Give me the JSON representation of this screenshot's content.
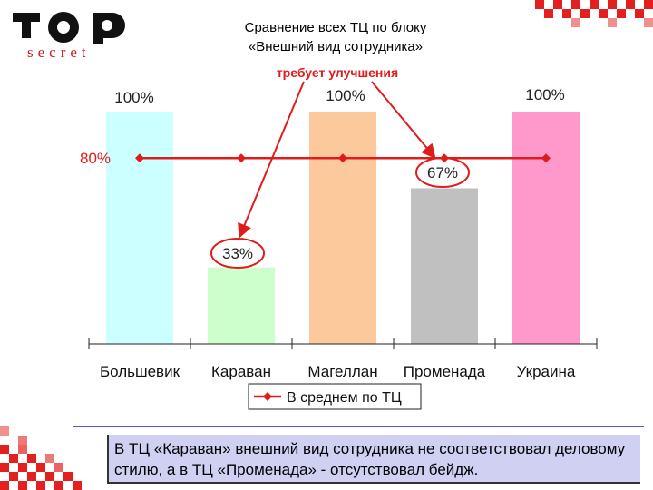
{
  "logo": {
    "word_top": "TOP",
    "word_bottom": "secret"
  },
  "title": {
    "line1": "Сравнение всех ТЦ по блоку",
    "line2": "«Внешний вид сотрудника»"
  },
  "chart_data": {
    "type": "bar",
    "categories": [
      "Большевик",
      "Караван",
      "Магеллан",
      "Променада",
      "Украина"
    ],
    "series": [
      {
        "name": "",
        "values": [
          100,
          33,
          100,
          67,
          100
        ],
        "colors": [
          "#ccffff",
          "#ccffcc",
          "#fcc99c",
          "#c0c0c0",
          "#ff99cc"
        ]
      },
      {
        "name": "В среднем по ТЦ",
        "type": "line",
        "values": [
          80,
          80,
          80,
          80,
          80
        ],
        "color": "#e01b1b"
      }
    ],
    "data_labels": [
      "100%",
      "33%",
      "100%",
      "67%",
      "100%"
    ],
    "average_label": "80%",
    "annotation": "требует улучшения",
    "ylim": [
      0,
      100
    ],
    "grid": false,
    "legend_position": "bottom"
  },
  "caption": "В ТЦ «Караван» внешний вид сотрудника не соответствовал деловому стилю, а в ТЦ «Променада» - отсутствовал бейдж."
}
